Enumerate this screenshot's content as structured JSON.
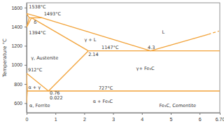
{
  "chart_data": {
    "type": "line",
    "ylabel": "Temperature °C",
    "xlim": [
      0,
      6.7
    ],
    "ylim": [
      500,
      1650
    ],
    "xticks": [
      0,
      1,
      2,
      3,
      4,
      5,
      6,
      {
        "value": 6.7,
        "label": "6.70"
      }
    ],
    "yticks": [
      600,
      800,
      1000,
      1200,
      1400,
      1600
    ],
    "grid": false,
    "color": "#f2a33a",
    "series": [
      {
        "x": [
          0,
          0.53,
          4.3
        ],
        "values": [
          1538,
          1493,
          1147
        ]
      },
      {
        "x": [
          4.3,
          6.3
        ],
        "values": [
          1147,
          1320
        ]
      },
      {
        "x": [
          6.3,
          6.67
        ],
        "values": [
          1320,
          1355
        ],
        "line_style": "dashed"
      },
      {
        "x": [
          0,
          0.09
        ],
        "values": [
          1538,
          1493
        ]
      },
      {
        "x": [
          0.09,
          0.53
        ],
        "values": [
          1493,
          1493
        ]
      },
      {
        "x": [
          0,
          0.09
        ],
        "values": [
          1394,
          1493
        ]
      },
      {
        "x": [
          0,
          0.17
        ],
        "values": [
          1394,
          1493
        ]
      },
      {
        "x": [
          0.17,
          2.14
        ],
        "values": [
          1493,
          1147
        ]
      },
      {
        "x": [
          2.14,
          6.7
        ],
        "values": [
          1147,
          1147
        ]
      },
      {
        "x": [
          0.76,
          2.14
        ],
        "values": [
          727,
          1147
        ]
      },
      {
        "x": [
          0,
          0.76
        ],
        "values": [
          912,
          727
        ]
      },
      {
        "x": [
          0,
          0.022
        ],
        "values": [
          912,
          727
        ]
      },
      {
        "x": [
          0.022,
          0
        ],
        "values": [
          727,
          600
        ]
      },
      {
        "x": [
          0.022,
          6.7
        ],
        "values": [
          727,
          727
        ]
      }
    ],
    "annotations": [
      {
        "text": "1538°C",
        "x": 0.08,
        "y": 1590
      },
      {
        "text": "1493°C",
        "x": 0.6,
        "y": 1520
      },
      {
        "text": "δ",
        "x": 0.25,
        "y": 1430
      },
      {
        "text": "1394°C",
        "x": 0.08,
        "y": 1320
      },
      {
        "text": "L",
        "x": 4.7,
        "y": 1330
      },
      {
        "text": "γ + L",
        "x": 2.0,
        "y": 1250
      },
      {
        "text": "γ, Austenite",
        "x": 0.15,
        "y": 1060
      },
      {
        "text": "2.14",
        "x": 2.14,
        "y": 1090
      },
      {
        "text": "1147°C",
        "x": 2.6,
        "y": 1165
      },
      {
        "text": "4.3",
        "x": 4.2,
        "y": 1165
      },
      {
        "text": "γ+ Fe₃C",
        "x": 3.8,
        "y": 950
      },
      {
        "text": "912°C",
        "x": 0.05,
        "y": 930
      },
      {
        "text": "α + γ",
        "x": 0.06,
        "y": 750
      },
      {
        "text": "0.76",
        "x": 0.8,
        "y": 690
      },
      {
        "text": "0.022",
        "x": 0.8,
        "y": 640
      },
      {
        "text": "727°C",
        "x": 2.5,
        "y": 745
      },
      {
        "text": "α, Ferrite",
        "x": 0.1,
        "y": 560
      },
      {
        "text": "α + Fe₃C",
        "x": 2.3,
        "y": 600
      },
      {
        "text": "Fe₃C, Cementite",
        "x": 4.6,
        "y": 560
      }
    ]
  }
}
